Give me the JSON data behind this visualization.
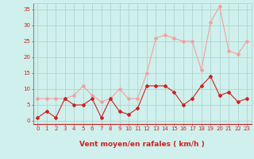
{
  "x": [
    0,
    1,
    2,
    3,
    4,
    5,
    6,
    7,
    8,
    9,
    10,
    11,
    12,
    13,
    14,
    15,
    16,
    17,
    18,
    19,
    20,
    21,
    22,
    23
  ],
  "wind_avg": [
    1,
    3,
    1,
    7,
    5,
    5,
    7,
    1,
    7,
    3,
    2,
    4,
    11,
    11,
    11,
    9,
    5,
    7,
    11,
    14,
    8,
    9,
    6,
    7
  ],
  "wind_gust": [
    7,
    7,
    7,
    7,
    8,
    11,
    8,
    6,
    7,
    10,
    7,
    7,
    15,
    26,
    27,
    26,
    25,
    25,
    16,
    31,
    36,
    22,
    21,
    25
  ],
  "bg_color": "#cff0ec",
  "grid_color": "#aacfcb",
  "line_color_avg": "#cc2222",
  "line_color_gust": "#f4a0a0",
  "xlabel": "Vent moyen/en rafales ( km/h )",
  "ylabel_ticks": [
    0,
    5,
    10,
    15,
    20,
    25,
    30,
    35
  ],
  "xlim": [
    -0.5,
    23.5
  ],
  "ylim": [
    -1,
    37
  ],
  "tick_color": "#cc2222",
  "marker": "D",
  "markersize": 2.0,
  "linewidth": 0.8,
  "tick_fontsize": 5.0,
  "xlabel_fontsize": 6.5
}
